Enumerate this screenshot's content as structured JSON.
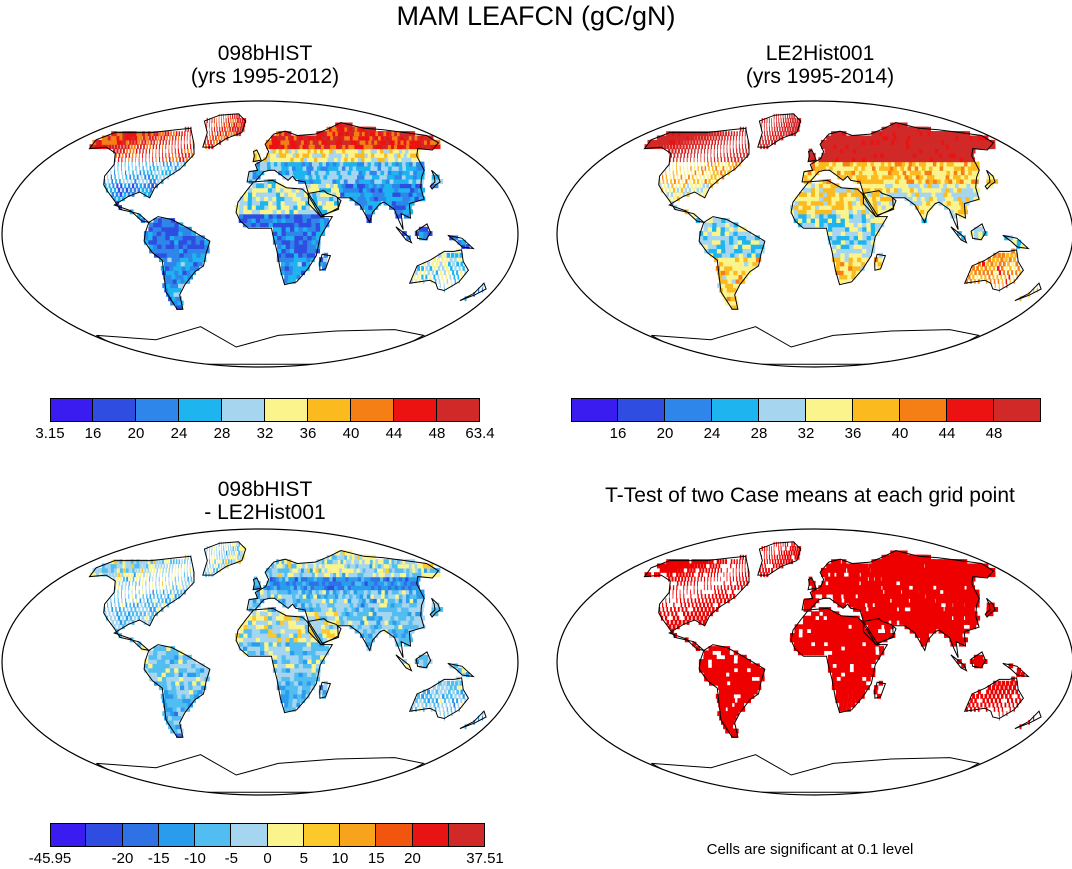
{
  "figure": {
    "title": "MAM LEAFCN (gC/gN)",
    "significance_note": "Cells are significant at 0.1 level"
  },
  "panels": [
    {
      "id": "ul",
      "title_line1": "098bHIST",
      "title_line2": "(yrs 1995-2012)",
      "colorbar": {
        "colors": [
          "#3b1cf0",
          "#2f4de0",
          "#2f86ea",
          "#1db4f0",
          "#a6d6ef",
          "#fbf48d",
          "#fbbb1e",
          "#f57f14",
          "#ec1212",
          "#d12828"
        ],
        "labels": [
          "3.15",
          "16",
          "20",
          "24",
          "28",
          "32",
          "36",
          "40",
          "44",
          "48",
          "63.4"
        ]
      },
      "field": "leafcn_case1"
    },
    {
      "id": "ur",
      "title_line1": "LE2Hist001",
      "title_line2": "(yrs 1995-2014)",
      "colorbar": {
        "colors": [
          "#3b1cf0",
          "#2f4de0",
          "#2f86ea",
          "#1db4f0",
          "#a6d6ef",
          "#fbf48d",
          "#fbbb1e",
          "#f57f14",
          "#ec1212",
          "#d12828"
        ],
        "labels": [
          "",
          "16",
          "20",
          "24",
          "28",
          "32",
          "36",
          "40",
          "44",
          "48",
          ""
        ]
      },
      "field": "leafcn_case2"
    },
    {
      "id": "ll",
      "title_line1": "098bHIST",
      "title_line2": "- LE2Hist001",
      "colorbar": {
        "colors": [
          "#3b1cf0",
          "#2f4de0",
          "#2f72e6",
          "#2a9cee",
          "#52bdf0",
          "#a6d6ef",
          "#fbf48d",
          "#fbc92a",
          "#f7a41c",
          "#f2560e",
          "#e81414",
          "#d12828"
        ],
        "labels": [
          "-45.95",
          "",
          "-20",
          "-15",
          "-10",
          "-5",
          "0",
          "5",
          "10",
          "15",
          "20",
          "",
          "37.51"
        ]
      },
      "field": "leafcn_difference"
    },
    {
      "id": "lr",
      "title_line1": "T-Test of two Case means at each grid point",
      "title_line2": "",
      "colorbar": null,
      "field": "ttest_significance",
      "significant_color": "#ee0000"
    }
  ]
}
